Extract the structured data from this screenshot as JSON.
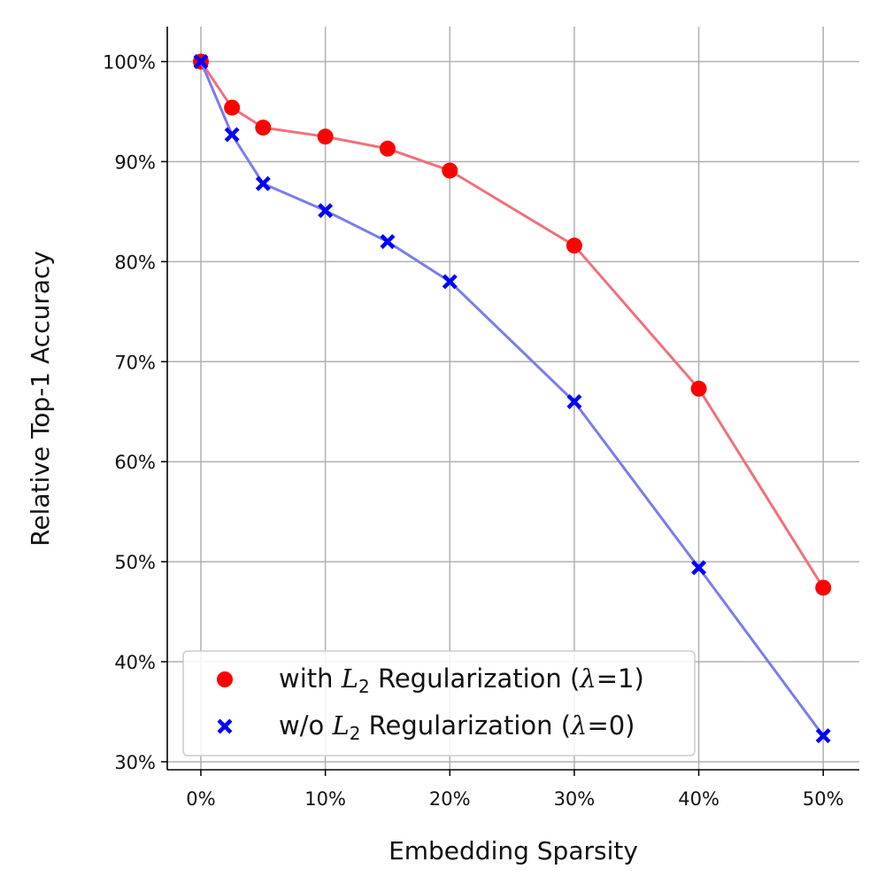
{
  "chart_data": {
    "type": "line",
    "xlabel": "Embedding Sparsity",
    "ylabel": "Relative Top-1 Accuracy",
    "x": [
      0,
      2.5,
      5,
      10,
      15,
      20,
      30,
      40,
      50
    ],
    "xlim": [
      -2.7,
      52.9
    ],
    "ylim": [
      29.2,
      103.5
    ],
    "xticks": [
      0,
      10,
      20,
      30,
      40,
      50
    ],
    "xtick_labels": [
      "0%",
      "10%",
      "20%",
      "30%",
      "40%",
      "50%"
    ],
    "yticks": [
      30,
      40,
      50,
      60,
      70,
      80,
      90,
      100
    ],
    "ytick_labels": [
      "30%",
      "40%",
      "50%",
      "60%",
      "70%",
      "80%",
      "90%",
      "100%"
    ],
    "grid": true,
    "legend_position": "lower-left",
    "series": [
      {
        "name": "with L2 Regularization (λ=1)",
        "legend_prefix": "with ",
        "legend_var": "L",
        "legend_sub": "2",
        "legend_mid": " Regularization (",
        "legend_lambda": "λ",
        "legend_suffix": "=1)",
        "marker": "circle",
        "color": "#ff0000",
        "line_color": "#f0707c",
        "values": [
          100,
          95.4,
          93.4,
          92.5,
          91.3,
          89.1,
          81.6,
          67.3,
          47.4
        ]
      },
      {
        "name": "w/o L2 Regularization (λ=0)",
        "legend_prefix": "w/o ",
        "legend_var": "L",
        "legend_sub": "2",
        "legend_mid": " Regularization (",
        "legend_lambda": "λ",
        "legend_suffix": "=0)",
        "marker": "x",
        "color": "#0000ff",
        "line_color": "#7b7bee",
        "values": [
          100,
          92.7,
          87.8,
          85.1,
          82.0,
          78.0,
          66.0,
          49.4,
          32.6
        ]
      }
    ]
  }
}
